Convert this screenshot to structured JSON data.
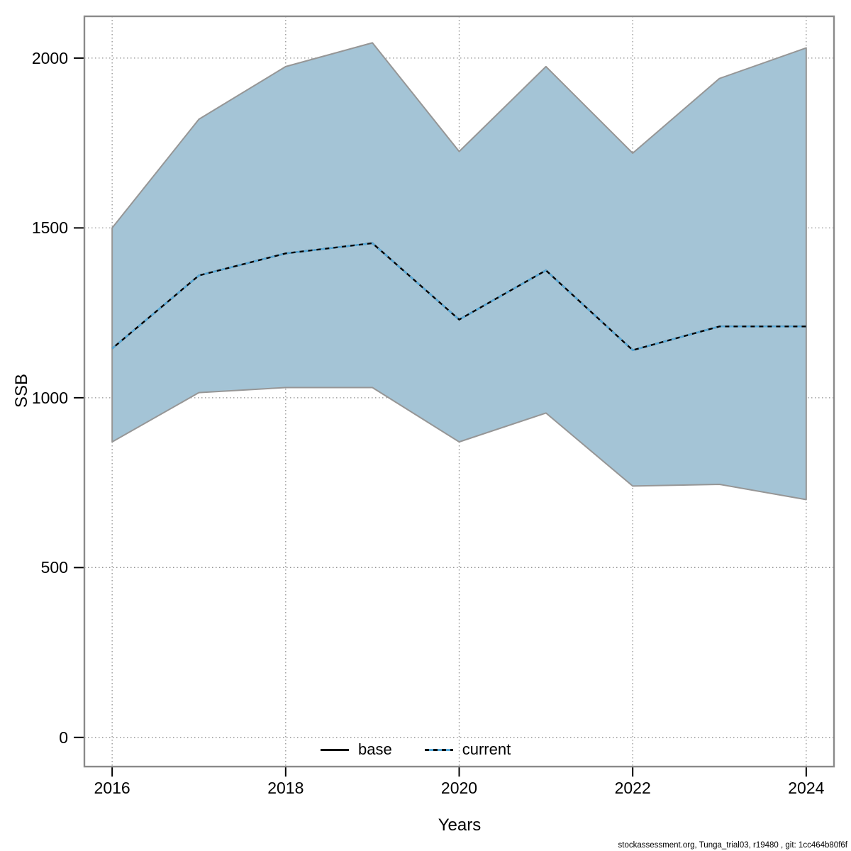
{
  "axes": {
    "x_label": "Years",
    "y_label": "SSB"
  },
  "legend": [
    {
      "label": "base",
      "style": "solid",
      "color": "#000000"
    },
    {
      "label": "current",
      "style": "dashed",
      "color": "#58acdc"
    }
  ],
  "footer": "stockassessment.org, Tunga_trial03, r19480 , git: 1cc464b80f6f",
  "chart_data": {
    "type": "line",
    "title": "",
    "xlabel": "Years",
    "ylabel": "SSB",
    "x": [
      2016,
      2017,
      2018,
      2019,
      2020,
      2021,
      2022,
      2023,
      2024
    ],
    "series": [
      {
        "name": "base",
        "values": [
          1145,
          1360,
          1425,
          1455,
          1230,
          1375,
          1140,
          1210,
          1210
        ]
      },
      {
        "name": "current",
        "values": [
          1145,
          1360,
          1425,
          1455,
          1230,
          1375,
          1140,
          1210,
          1210
        ]
      }
    ],
    "band": {
      "name": "confidence-interval",
      "upper": [
        1500,
        1820,
        1975,
        2045,
        1725,
        1975,
        1720,
        1940,
        2030
      ],
      "lower": [
        870,
        1015,
        1030,
        1030,
        870,
        955,
        740,
        745,
        700
      ]
    },
    "x_ticks": [
      2016,
      2018,
      2020,
      2022,
      2024
    ],
    "x_tick_labels": [
      "2016",
      "2018",
      "2020",
      "2022",
      "2024"
    ],
    "y_ticks": [
      0,
      500,
      1000,
      1500,
      2000
    ],
    "y_tick_labels": [
      "0",
      "500",
      "1000",
      "1500",
      "2000"
    ],
    "xlim": [
      2015.68,
      2024.32
    ],
    "ylim": [
      -86,
      2123
    ],
    "grid": true,
    "legend_position": "bottom-center",
    "colors": {
      "band_fill": "#a4c4d6",
      "band_stroke": "#969696",
      "base_line": "#000000",
      "current_line": "#58acdc",
      "grid": "#8f8f8f",
      "frame": "#8a8a8a",
      "tick": "#000000",
      "text": "#000000"
    }
  }
}
